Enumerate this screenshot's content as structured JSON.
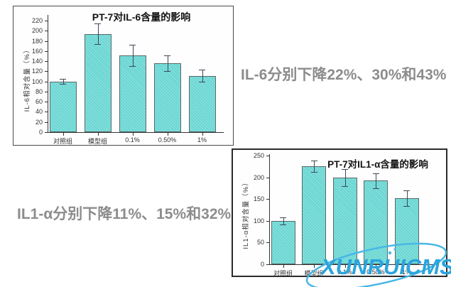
{
  "chart_data": [
    {
      "type": "bar",
      "title": "PT-7对IL-6含量的影响",
      "ylabel": "IL-6相对含量（%）",
      "xlabel": "",
      "categories": [
        "对照组",
        "模型组",
        "0.1%",
        "0.50%",
        "1%"
      ],
      "values": [
        100,
        194,
        152,
        136,
        111
      ],
      "errors": [
        5,
        20,
        21,
        15,
        12
      ],
      "yticks": [
        0,
        20,
        40,
        60,
        80,
        100,
        120,
        140,
        160,
        180,
        200,
        220
      ],
      "ylim": [
        0,
        230
      ],
      "grid": false,
      "legend": null,
      "bar_color": "#68d6d2"
    },
    {
      "type": "bar",
      "title": "PT-7对IL1-α含量的影响",
      "ylabel": "IL1-α相对含量（%）",
      "xlabel": "",
      "categories": [
        "对照组",
        "模型组",
        "0.1%",
        "0.50%",
        "1%"
      ],
      "values": [
        100,
        225,
        199,
        192,
        152
      ],
      "errors": [
        8,
        13,
        20,
        17,
        18
      ],
      "yticks": [
        0,
        50,
        100,
        150,
        200,
        250
      ],
      "ylim": [
        0,
        260
      ],
      "grid": false,
      "legend": null,
      "bar_color": "#68d6d2"
    }
  ],
  "captions": {
    "il6": "IL-6分别下降22%、30%和43%",
    "il1a": "IL1-α分别下降11%、15%和32%"
  },
  "watermark": {
    "text": "XUNRUICMS",
    "color": "#2aa4dd",
    "swoosh_color": "#49b7e6"
  }
}
